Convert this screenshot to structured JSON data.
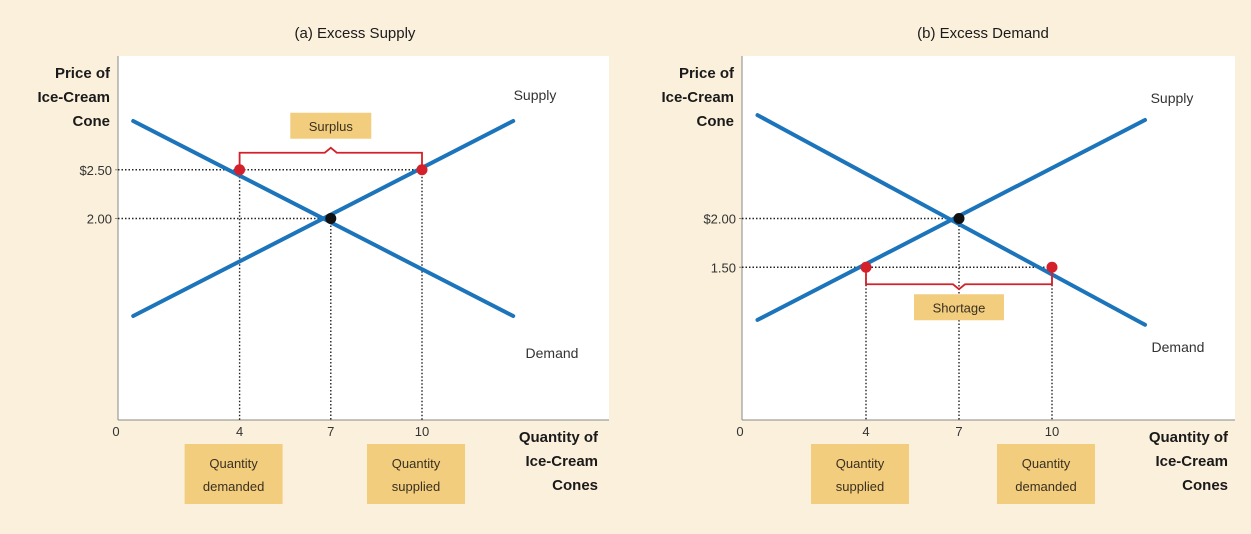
{
  "colors": {
    "background": "#fbf0dc",
    "plot_area": "#ffffff",
    "curve": "#1c74bb",
    "highlight_point": "#d4202a",
    "equilibrium_point": "#111111",
    "bracket": "#d4202a",
    "callout_box": "#f2cd7e"
  },
  "chart_data": [
    {
      "type": "line",
      "title": "(a) Excess Supply",
      "ylabel": [
        "Price of",
        "Ice-Cream",
        "Cone"
      ],
      "xlabel": [
        "Quantity of",
        "Ice-Cream",
        "Cones"
      ],
      "x_ticks": [
        {
          "value": 0,
          "label": "0"
        },
        {
          "value": 4,
          "label": "4"
        },
        {
          "value": 7,
          "label": "7"
        },
        {
          "value": 10,
          "label": "10"
        }
      ],
      "y_ticks": [
        {
          "value": 2.5,
          "label": "$2.50"
        },
        {
          "value": 2.0,
          "label": "2.00"
        }
      ],
      "series": [
        {
          "name": "Supply",
          "points": [
            [
              0.5,
              1.0
            ],
            [
              13.0,
              3.0
            ]
          ]
        },
        {
          "name": "Demand",
          "points": [
            [
              0.5,
              3.0
            ],
            [
              13.0,
              1.0
            ]
          ]
        }
      ],
      "equilibrium": {
        "x": 7,
        "y": 2.0
      },
      "highlight_points": [
        {
          "x": 4,
          "y": 2.5
        },
        {
          "x": 10,
          "y": 2.5
        }
      ],
      "gap": {
        "label": "Surplus",
        "from": 4,
        "to": 10,
        "price": 2.5,
        "position": "above"
      },
      "quantity_labels": [
        {
          "x": 4,
          "lines": [
            "Quantity",
            "demanded"
          ]
        },
        {
          "x": 10,
          "lines": [
            "Quantity",
            "supplied"
          ]
        }
      ]
    },
    {
      "type": "line",
      "title": "(b) Excess Demand",
      "ylabel": [
        "Price of",
        "Ice-Cream",
        "Cone"
      ],
      "xlabel": [
        "Quantity of",
        "Ice-Cream",
        "Cones"
      ],
      "x_ticks": [
        {
          "value": 0,
          "label": "0"
        },
        {
          "value": 4,
          "label": "4"
        },
        {
          "value": 7,
          "label": "7"
        },
        {
          "value": 10,
          "label": "10"
        }
      ],
      "y_ticks": [
        {
          "value": 2.0,
          "label": "$2.00"
        },
        {
          "value": 1.5,
          "label": "1.50"
        }
      ],
      "series": [
        {
          "name": "Supply",
          "points": [
            [
              0.5,
              0.96
            ],
            [
              13.0,
              3.01
            ]
          ]
        },
        {
          "name": "Demand",
          "points": [
            [
              0.5,
              3.06
            ],
            [
              13.0,
              0.91
            ]
          ]
        }
      ],
      "equilibrium": {
        "x": 7,
        "y": 2.0
      },
      "highlight_points": [
        {
          "x": 4,
          "y": 1.5
        },
        {
          "x": 10,
          "y": 1.5
        }
      ],
      "gap": {
        "label": "Shortage",
        "from": 4,
        "to": 10,
        "price": 1.5,
        "position": "below"
      },
      "quantity_labels": [
        {
          "x": 4,
          "lines": [
            "Quantity",
            "supplied"
          ]
        },
        {
          "x": 10,
          "lines": [
            "Quantity",
            "demanded"
          ]
        }
      ]
    }
  ]
}
